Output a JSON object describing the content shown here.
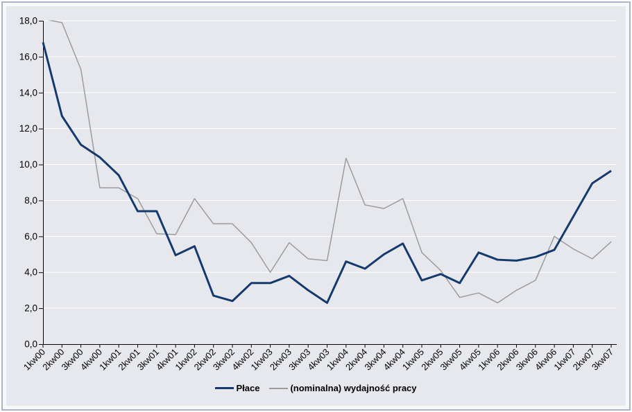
{
  "chart_data": {
    "type": "line",
    "categories": [
      "1kw00",
      "2kw00",
      "3kw00",
      "4kw00",
      "1kw01",
      "2kw01",
      "3kw01",
      "4kw01",
      "1kw02",
      "2kw02",
      "3kw02",
      "4kw02",
      "1kw03",
      "2kw03",
      "3kw03",
      "4kw03",
      "1kw04",
      "2kw04",
      "3kw04",
      "4kw04",
      "1kw05",
      "2kw05",
      "3kw05",
      "4kw05",
      "1kw06",
      "2kw06",
      "3kw06",
      "4kw06",
      "1kw07",
      "2kw07",
      "3kw07"
    ],
    "series": [
      {
        "name": "Płace",
        "color": "#143a6d",
        "line_width": 3,
        "values": [
          16.8,
          12.7,
          11.1,
          10.4,
          9.4,
          7.4,
          7.4,
          4.95,
          5.45,
          2.7,
          2.4,
          3.4,
          3.4,
          3.8,
          3.0,
          2.3,
          4.6,
          4.2,
          5.0,
          5.6,
          3.55,
          3.9,
          3.4,
          5.1,
          4.7,
          4.65,
          4.85,
          5.25,
          7.1,
          8.95,
          9.65
        ]
      },
      {
        "name": "(nominalna) wydajność pracy",
        "color": "#9b9b9b",
        "line_width": 1.5,
        "values": [
          18.1,
          17.9,
          15.3,
          8.7,
          8.7,
          8.1,
          6.15,
          6.1,
          8.1,
          6.7,
          6.7,
          5.65,
          4.0,
          5.65,
          4.75,
          4.65,
          10.35,
          7.75,
          7.55,
          8.1,
          5.1,
          4.1,
          2.6,
          2.85,
          2.3,
          3.0,
          3.55,
          6.0,
          5.3,
          4.75,
          5.7
        ]
      }
    ],
    "ylim": [
      0,
      18
    ],
    "ytick_step": 2,
    "ytick_labels": [
      "0,0",
      "2,0",
      "4,0",
      "6,0",
      "8,0",
      "10,0",
      "12,0",
      "14,0",
      "16,0",
      "18,0"
    ],
    "xlabel": "",
    "ylabel": "",
    "grid": true,
    "gridline_color": "#ffffff",
    "plot_bg_color": "#e6e8ed",
    "axis_color": "#000000",
    "legend_position": "bottom"
  }
}
